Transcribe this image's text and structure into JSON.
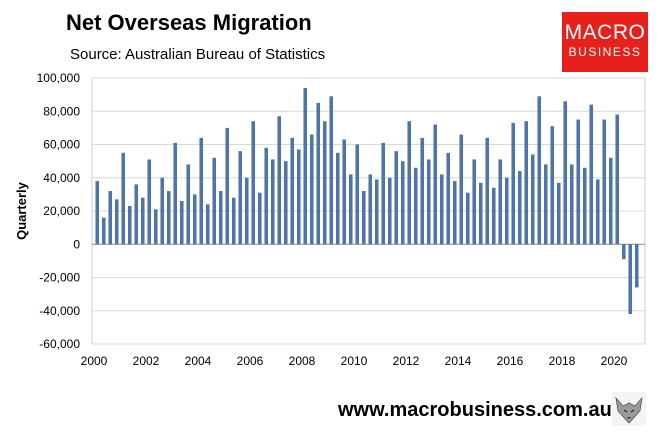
{
  "chart_data": {
    "type": "bar",
    "title": "Net Overseas Migration",
    "subtitle": "Source: Australian Bureau of Statistics",
    "xlabel": "",
    "ylabel": "Quarterly",
    "ylim": [
      -60000,
      100000
    ],
    "yticks": [
      100000,
      80000,
      60000,
      40000,
      20000,
      0,
      -20000,
      -40000,
      -60000
    ],
    "ytick_labels": [
      "100,000",
      "80,000",
      "60,000",
      "40,000",
      "20,000",
      "0",
      "-20,000",
      "-40,000",
      "-60,000"
    ],
    "xticks": [
      "2000",
      "2002",
      "2004",
      "2006",
      "2008",
      "2010",
      "2012",
      "2014",
      "2016",
      "2018",
      "2020"
    ],
    "x_start_year": 2000,
    "x_end_year": 2021,
    "grid": true,
    "bar_color": "#4f74a8",
    "values": [
      38000,
      16000,
      32000,
      27000,
      55000,
      23000,
      36000,
      28000,
      51000,
      21000,
      40000,
      32000,
      61000,
      26000,
      48000,
      30000,
      64000,
      24000,
      52000,
      32000,
      70000,
      28000,
      56000,
      40000,
      74000,
      31000,
      58000,
      51000,
      77000,
      50000,
      64000,
      57000,
      94000,
      66000,
      85000,
      74000,
      89000,
      55000,
      63000,
      42000,
      60000,
      32000,
      42000,
      39000,
      61000,
      40000,
      56000,
      50000,
      74000,
      46000,
      64000,
      51000,
      72000,
      42000,
      55000,
      38000,
      66000,
      31000,
      51000,
      37000,
      64000,
      34000,
      51000,
      40000,
      73000,
      44000,
      74000,
      54000,
      89000,
      48000,
      71000,
      37000,
      86000,
      48000,
      75000,
      46000,
      84000,
      39000,
      75000,
      52000,
      78000,
      -9000,
      -42000,
      -26000
    ]
  },
  "branding": {
    "logo_line1": "MACRO",
    "logo_line2": "BUSINESS",
    "logo_color": "#e8201c",
    "website": "www.macrobusiness.com.au"
  }
}
